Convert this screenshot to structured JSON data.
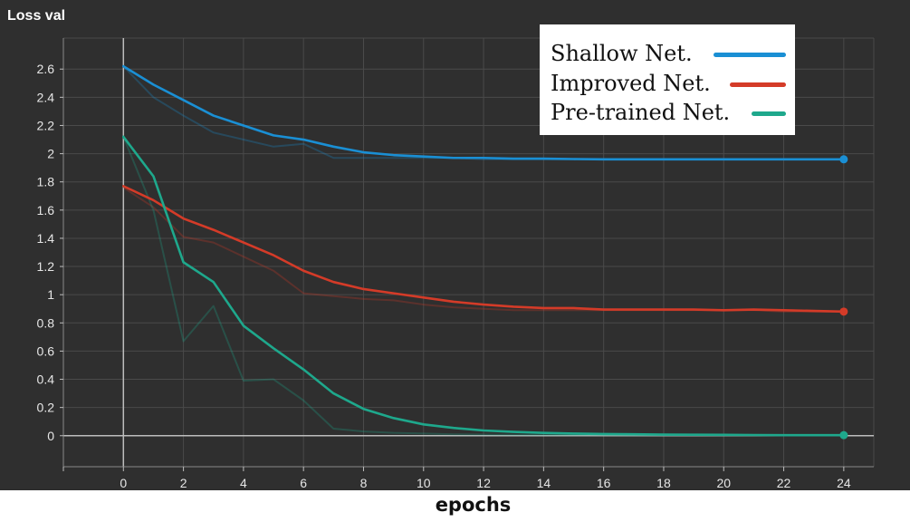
{
  "chart_data": {
    "type": "line",
    "title": "Loss val",
    "xlabel": "epochs",
    "ylabel": "",
    "xlim": [
      -2,
      25
    ],
    "ylim": [
      -0.22,
      2.82
    ],
    "x_ticks": [
      0,
      2,
      4,
      6,
      8,
      10,
      12,
      14,
      16,
      18,
      20,
      22,
      24
    ],
    "y_ticks": [
      0,
      0.2,
      0.4,
      0.6,
      0.8,
      1,
      1.2,
      1.4,
      1.6,
      1.8,
      2,
      2.2,
      2.4,
      2.6
    ],
    "grid": true,
    "legend_position": "top-right",
    "x": [
      0,
      1,
      2,
      3,
      4,
      5,
      6,
      7,
      8,
      9,
      10,
      11,
      12,
      13,
      14,
      15,
      16,
      17,
      18,
      19,
      20,
      21,
      22,
      23,
      24
    ],
    "series": [
      {
        "name": "Shallow Net.",
        "color": "#1a8fd4",
        "values": [
          2.62,
          2.49,
          2.38,
          2.27,
          2.2,
          2.13,
          2.1,
          2.05,
          2.01,
          1.99,
          1.98,
          1.97,
          1.97,
          1.965,
          1.965,
          1.962,
          1.96,
          1.96,
          1.96,
          1.96,
          1.96,
          1.96,
          1.96,
          1.96,
          1.96
        ],
        "raw_values": [
          2.62,
          2.4,
          2.27,
          2.15,
          2.1,
          2.05,
          2.07,
          1.97,
          1.97,
          1.97,
          1.97,
          1.97,
          1.96,
          1.96,
          1.96,
          1.96,
          1.96,
          1.96,
          1.96,
          1.96,
          1.96,
          1.96,
          1.96,
          1.96,
          1.96
        ]
      },
      {
        "name": "Improved Net.",
        "color": "#d43b28",
        "values": [
          1.77,
          1.67,
          1.54,
          1.46,
          1.37,
          1.28,
          1.17,
          1.09,
          1.04,
          1.01,
          0.98,
          0.95,
          0.93,
          0.915,
          0.905,
          0.905,
          0.895,
          0.895,
          0.895,
          0.895,
          0.89,
          0.895,
          0.89,
          0.885,
          0.88
        ],
        "raw_values": [
          1.76,
          1.62,
          1.41,
          1.37,
          1.27,
          1.17,
          1.01,
          0.99,
          0.97,
          0.96,
          0.93,
          0.91,
          0.9,
          0.89,
          0.89,
          0.89,
          0.89,
          0.89,
          0.89,
          0.89,
          0.89,
          0.89,
          0.88,
          0.88,
          0.88
        ]
      },
      {
        "name": "Pre-trained Net.",
        "color": "#1ea88c",
        "values": [
          2.12,
          1.84,
          1.23,
          1.09,
          0.78,
          0.62,
          0.47,
          0.3,
          0.19,
          0.125,
          0.08,
          0.055,
          0.037,
          0.027,
          0.02,
          0.015,
          0.012,
          0.01,
          0.008,
          0.007,
          0.006,
          0.005,
          0.004,
          0.004,
          0.004
        ],
        "raw_values": [
          2.12,
          1.6,
          0.67,
          0.92,
          0.39,
          0.4,
          0.25,
          0.05,
          0.03,
          0.02,
          0.015,
          0.01,
          0.008,
          0.006,
          0.005,
          0.004,
          0.004,
          0.003,
          0.003,
          0.003,
          0.003,
          0.003,
          0.003,
          0.003,
          0.003
        ]
      }
    ]
  }
}
